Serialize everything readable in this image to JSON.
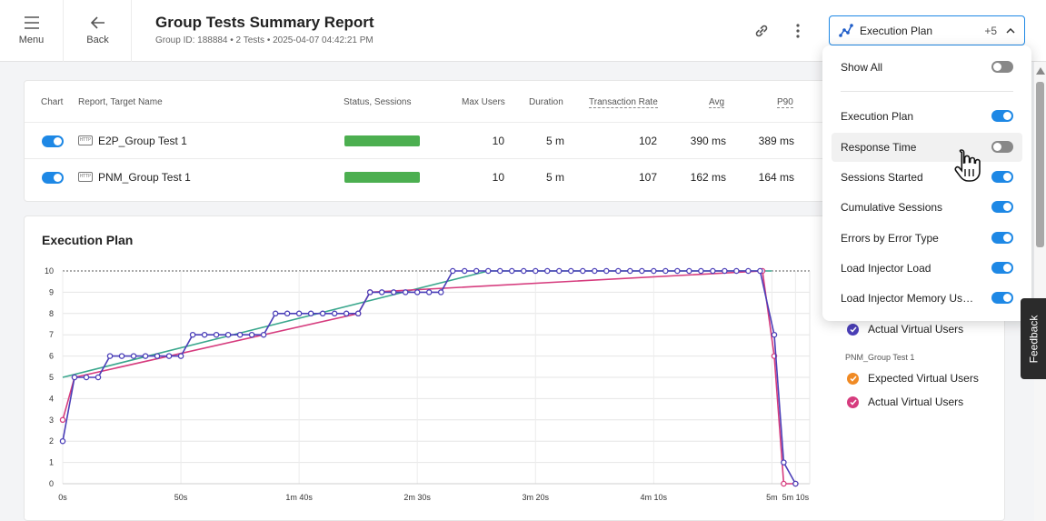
{
  "header": {
    "menu_label": "Menu",
    "back_label": "Back",
    "title": "Group Tests Summary Report",
    "subtitle": "Group ID: 188884 • 2 Tests • 2025-04-07 04:42:21 PM",
    "dropdown_label": "Execution Plan",
    "dropdown_count": "+5"
  },
  "table": {
    "headers": {
      "chart": "Chart",
      "name": "Report, Target Name",
      "status": "Status, Sessions",
      "max_users": "Max Users",
      "duration": "Duration",
      "transaction_rate": "Transaction Rate",
      "avg": "Avg",
      "p90": "P90"
    },
    "rows": [
      {
        "icon": "HTTP",
        "name": "E2P_Group Test 1",
        "max_users": "10",
        "duration": "5 m",
        "transaction_rate": "102",
        "avg": "390 ms",
        "p90": "389 ms",
        "chart_on": true
      },
      {
        "icon": "HTTP",
        "name": "PNM_Group Test 1",
        "max_users": "10",
        "duration": "5 m",
        "transaction_rate": "107",
        "avg": "162 ms",
        "p90": "164 ms",
        "chart_on": true
      }
    ]
  },
  "panel": {
    "items": [
      {
        "label": "Show All",
        "on": false
      },
      {
        "label": "Execution Plan",
        "on": true
      },
      {
        "label": "Response Time",
        "on": false
      },
      {
        "label": "Sessions Started",
        "on": true
      },
      {
        "label": "Cumulative Sessions",
        "on": true
      },
      {
        "label": "Errors by Error Type",
        "on": true
      },
      {
        "label": "Load Injector Load",
        "on": true
      },
      {
        "label": "Load Injector Memory Usa...",
        "on": true
      }
    ]
  },
  "legend": {
    "item1": "Actual Virtual Users",
    "group2": "PNM_Group Test 1",
    "item2": "Expected Virtual Users",
    "item3": "Actual Virtual Users"
  },
  "feedback_label": "Feedback",
  "colors": {
    "accent": "#1e88e5",
    "success": "#4caf50",
    "expected_line": "#3aa78d",
    "e2p_actual": "#4b3fb8",
    "pnm_actual": "#d63c7e",
    "pnm_expected": "#f08a24"
  },
  "chart_data": {
    "type": "line",
    "title": "Execution Plan",
    "xlabel": "",
    "ylabel": "",
    "xlim": [
      0,
      316
    ],
    "ylim": [
      0,
      10
    ],
    "yticks": [
      "0",
      "1",
      "2",
      "3",
      "4",
      "5",
      "6",
      "7",
      "8",
      "9",
      "10"
    ],
    "xticks": [
      {
        "value": 0,
        "label": "0s"
      },
      {
        "value": 50,
        "label": "50s"
      },
      {
        "value": 100,
        "label": "1m 40s"
      },
      {
        "value": 150,
        "label": "2m 30s"
      },
      {
        "value": 200,
        "label": "3m 20s"
      },
      {
        "value": 250,
        "label": "4m 10s"
      },
      {
        "value": 300,
        "label": "5m"
      },
      {
        "value": 310,
        "label": "5m 10s"
      }
    ],
    "series": [
      {
        "name": "Expected Virtual Users",
        "x": [
          0,
          180,
          300
        ],
        "values": [
          5,
          10,
          10
        ]
      },
      {
        "name": "PNM Actual Virtual Users",
        "x": [
          0,
          5,
          125,
          130,
          296,
          301,
          305,
          310
        ],
        "values": [
          3,
          5,
          8,
          9,
          10,
          6,
          0,
          0
        ]
      },
      {
        "name": "E2P Actual Virtual Users",
        "x": [
          0,
          5,
          10,
          15,
          20,
          25,
          30,
          35,
          40,
          45,
          50,
          55,
          60,
          65,
          70,
          75,
          80,
          85,
          90,
          95,
          100,
          105,
          110,
          115,
          120,
          125,
          130,
          135,
          140,
          145,
          150,
          155,
          160,
          165,
          170,
          175,
          180,
          185,
          190,
          195,
          200,
          205,
          210,
          215,
          220,
          225,
          230,
          235,
          240,
          245,
          250,
          255,
          260,
          265,
          270,
          275,
          280,
          285,
          290,
          295,
          301,
          305,
          310
        ],
        "values": [
          2,
          5,
          5,
          5,
          6,
          6,
          6,
          6,
          6,
          6,
          6,
          7,
          7,
          7,
          7,
          7,
          7,
          7,
          8,
          8,
          8,
          8,
          8,
          8,
          8,
          8,
          9,
          9,
          9,
          9,
          9,
          9,
          9,
          10,
          10,
          10,
          10,
          10,
          10,
          10,
          10,
          10,
          10,
          10,
          10,
          10,
          10,
          10,
          10,
          10,
          10,
          10,
          10,
          10,
          10,
          10,
          10,
          10,
          10,
          10,
          7,
          1,
          0
        ]
      }
    ]
  }
}
